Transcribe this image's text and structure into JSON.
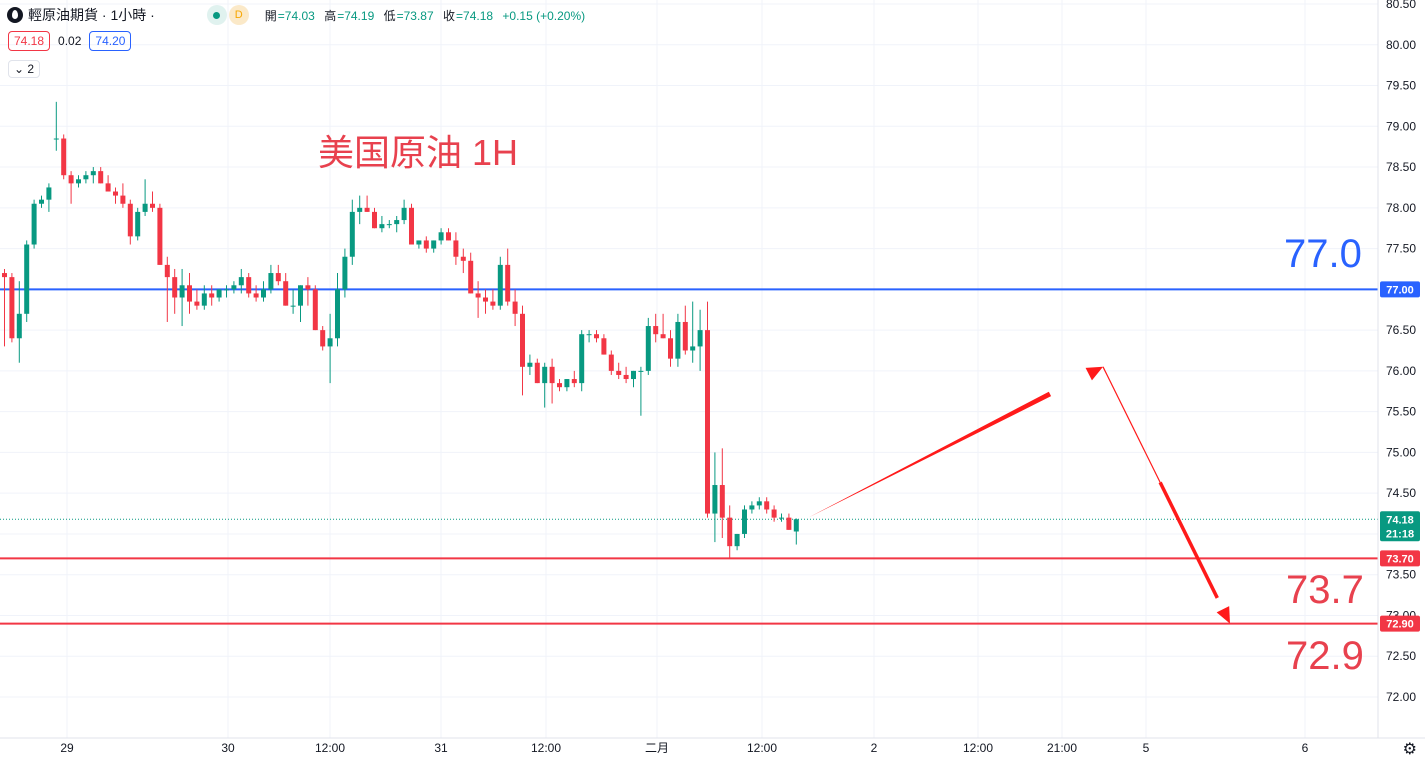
{
  "header": {
    "title": "輕原油期貨 · 1小時 ·",
    "badge_d": "D",
    "ohlc": [
      {
        "k": "開",
        "v": "=74.03"
      },
      {
        "k": "高",
        "v": "=74.19"
      },
      {
        "k": "低",
        "v": "=73.87"
      },
      {
        "k": "收",
        "v": "=74.18"
      },
      {
        "k": "",
        "v": "+0.15 (+0.20%)"
      }
    ],
    "bid": "74.18",
    "spread": "0.02",
    "ask": "74.20",
    "collapse": "⌄ 2"
  },
  "annotations": {
    "watermark": "美国原油 1H",
    "label_77": "77.0",
    "label_737": "73.7",
    "label_729": "72.9"
  },
  "colors": {
    "up": "#089981",
    "down": "#f23645",
    "blue_line": "#2962ff",
    "red_line": "#f23645",
    "arrow": "#ff1a1a"
  },
  "chart_data": {
    "type": "candlestick",
    "ylim": [
      71.75,
      80.5
    ],
    "y_ticks": [
      "72.00",
      "72.50",
      "73.00",
      "73.50",
      "74.00",
      "74.50",
      "75.00",
      "75.50",
      "76.00",
      "76.50",
      "77.00",
      "77.50",
      "78.00",
      "78.50",
      "79.00",
      "79.50",
      "80.00",
      "80.50"
    ],
    "x_tick_labels": [
      "29",
      "30",
      "12:00",
      "31",
      "12:00",
      "二月",
      "12:00",
      "2",
      "12:00",
      "21:00",
      "5",
      "6"
    ],
    "horizontal_lines": [
      {
        "value": 77.0,
        "color": "#2962ff",
        "label": "77.00"
      },
      {
        "value": 73.7,
        "color": "#f23645",
        "label": "73.70"
      },
      {
        "value": 72.9,
        "color": "#f23645",
        "label": "72.90"
      }
    ],
    "last_price": {
      "value": 74.18,
      "label": "74.18",
      "countdown": "21:18"
    },
    "projection": [
      [
        74.2,
        "now"
      ],
      [
        76.05,
        "peak"
      ],
      [
        72.9,
        "target"
      ]
    ],
    "candles": [
      [
        77.2,
        77.25,
        76.3,
        77.15
      ],
      [
        77.15,
        77.2,
        76.35,
        76.4
      ],
      [
        76.4,
        77.1,
        76.1,
        76.7
      ],
      [
        76.7,
        77.6,
        76.6,
        77.55
      ],
      [
        77.55,
        78.1,
        77.5,
        78.05
      ],
      [
        78.05,
        78.15,
        78.0,
        78.1
      ],
      [
        78.1,
        78.3,
        77.95,
        78.25
      ],
      [
        78.85,
        79.3,
        78.7,
        78.85
      ],
      [
        78.85,
        78.9,
        78.35,
        78.4
      ],
      [
        78.4,
        78.45,
        78.05,
        78.3
      ],
      [
        78.3,
        78.4,
        78.25,
        78.35
      ],
      [
        78.35,
        78.45,
        78.3,
        78.4
      ],
      [
        78.4,
        78.5,
        78.3,
        78.45
      ],
      [
        78.45,
        78.5,
        78.3,
        78.3
      ],
      [
        78.3,
        78.4,
        78.2,
        78.2
      ],
      [
        78.2,
        78.25,
        78.05,
        78.15
      ],
      [
        78.15,
        78.3,
        78.0,
        78.05
      ],
      [
        78.05,
        78.1,
        77.55,
        77.65
      ],
      [
        77.65,
        78.0,
        77.6,
        77.95
      ],
      [
        77.95,
        78.35,
        77.9,
        78.05
      ],
      [
        78.05,
        78.2,
        77.95,
        78.0
      ],
      [
        78.0,
        78.05,
        77.3,
        77.3
      ],
      [
        77.3,
        77.4,
        76.6,
        77.15
      ],
      [
        77.15,
        77.25,
        76.7,
        76.9
      ],
      [
        76.9,
        77.25,
        76.55,
        77.05
      ],
      [
        77.05,
        77.2,
        76.7,
        76.85
      ],
      [
        76.85,
        77.0,
        76.75,
        76.8
      ],
      [
        76.8,
        77.05,
        76.75,
        76.95
      ],
      [
        76.95,
        77.05,
        76.8,
        76.9
      ],
      [
        76.9,
        77.0,
        76.85,
        77.0
      ],
      [
        77.0,
        77.05,
        76.9,
        77.0
      ],
      [
        77.0,
        77.1,
        76.95,
        77.05
      ],
      [
        77.05,
        77.25,
        76.95,
        77.15
      ],
      [
        77.15,
        77.2,
        76.9,
        76.95
      ],
      [
        76.95,
        77.05,
        76.85,
        76.9
      ],
      [
        76.9,
        77.1,
        76.85,
        77.0
      ],
      [
        77.0,
        77.3,
        76.95,
        77.2
      ],
      [
        77.2,
        77.3,
        77.05,
        77.1
      ],
      [
        77.1,
        77.2,
        76.8,
        76.8
      ],
      [
        76.8,
        77.0,
        76.7,
        76.8
      ],
      [
        76.8,
        77.05,
        76.6,
        77.05
      ],
      [
        77.05,
        77.15,
        76.8,
        77.0
      ],
      [
        77.0,
        77.05,
        76.5,
        76.5
      ],
      [
        76.5,
        76.55,
        76.25,
        76.3
      ],
      [
        76.3,
        76.7,
        75.85,
        76.4
      ],
      [
        76.4,
        77.2,
        76.3,
        77.0
      ],
      [
        77.0,
        77.5,
        76.9,
        77.4
      ],
      [
        77.4,
        78.1,
        77.3,
        77.95
      ],
      [
        77.95,
        78.15,
        77.8,
        78.0
      ],
      [
        78.0,
        78.15,
        77.95,
        77.95
      ],
      [
        77.95,
        78.0,
        77.75,
        77.75
      ],
      [
        77.75,
        77.9,
        77.7,
        77.8
      ],
      [
        77.8,
        77.85,
        77.75,
        77.8
      ],
      [
        77.8,
        77.9,
        77.7,
        77.85
      ],
      [
        77.85,
        78.1,
        77.8,
        78.0
      ],
      [
        78.0,
        78.05,
        77.55,
        77.55
      ],
      [
        77.55,
        77.6,
        77.5,
        77.6
      ],
      [
        77.6,
        77.65,
        77.45,
        77.5
      ],
      [
        77.5,
        77.6,
        77.45,
        77.6
      ],
      [
        77.6,
        77.75,
        77.55,
        77.7
      ],
      [
        77.7,
        77.75,
        77.6,
        77.6
      ],
      [
        77.6,
        77.7,
        77.3,
        77.4
      ],
      [
        77.4,
        77.5,
        77.2,
        77.35
      ],
      [
        77.35,
        77.45,
        76.95,
        76.95
      ],
      [
        76.95,
        77.1,
        76.65,
        76.9
      ],
      [
        76.9,
        77.0,
        76.7,
        76.85
      ],
      [
        76.85,
        77.0,
        76.75,
        76.8
      ],
      [
        76.8,
        77.4,
        76.75,
        77.3
      ],
      [
        77.3,
        77.5,
        76.8,
        76.85
      ],
      [
        76.85,
        77.0,
        76.55,
        76.7
      ],
      [
        76.7,
        76.8,
        75.7,
        76.05
      ],
      [
        76.05,
        76.2,
        75.95,
        76.1
      ],
      [
        76.1,
        76.15,
        75.85,
        75.85
      ],
      [
        75.85,
        76.1,
        75.55,
        76.05
      ],
      [
        76.05,
        76.15,
        75.6,
        75.85
      ],
      [
        75.85,
        75.9,
        75.75,
        75.8
      ],
      [
        75.8,
        75.9,
        75.75,
        75.9
      ],
      [
        75.9,
        76.0,
        75.8,
        75.85
      ],
      [
        75.85,
        76.5,
        75.75,
        76.45
      ],
      [
        76.45,
        76.5,
        76.35,
        76.45
      ],
      [
        76.45,
        76.5,
        76.35,
        76.4
      ],
      [
        76.4,
        76.45,
        76.2,
        76.2
      ],
      [
        76.2,
        76.25,
        75.95,
        76.0
      ],
      [
        76.0,
        76.1,
        75.9,
        75.95
      ],
      [
        75.95,
        76.05,
        75.85,
        75.9
      ],
      [
        75.9,
        76.0,
        75.8,
        76.0
      ],
      [
        76.0,
        76.05,
        75.45,
        76.0
      ],
      [
        76.0,
        76.65,
        75.95,
        76.55
      ],
      [
        76.55,
        76.7,
        76.35,
        76.45
      ],
      [
        76.45,
        76.7,
        76.4,
        76.4
      ],
      [
        76.4,
        76.5,
        76.05,
        76.15
      ],
      [
        76.15,
        76.7,
        76.05,
        76.6
      ],
      [
        76.6,
        76.8,
        76.2,
        76.25
      ],
      [
        76.25,
        76.85,
        76.1,
        76.3
      ],
      [
        76.3,
        76.75,
        76.0,
        76.5
      ],
      [
        76.5,
        76.85,
        74.2,
        74.25
      ],
      [
        74.25,
        75.0,
        73.9,
        74.6
      ],
      [
        74.6,
        75.05,
        73.95,
        74.2
      ],
      [
        74.2,
        74.35,
        73.7,
        73.85
      ],
      [
        73.85,
        74.0,
        73.8,
        74.0
      ],
      [
        74.0,
        74.35,
        73.95,
        74.3
      ],
      [
        74.3,
        74.4,
        74.25,
        74.35
      ],
      [
        74.35,
        74.45,
        74.3,
        74.4
      ],
      [
        74.4,
        74.45,
        74.25,
        74.3
      ],
      [
        74.3,
        74.35,
        74.15,
        74.2
      ],
      [
        74.2,
        74.25,
        74.15,
        74.2
      ],
      [
        74.2,
        74.25,
        74.05,
        74.05
      ],
      [
        74.03,
        74.19,
        73.87,
        74.18
      ]
    ]
  }
}
